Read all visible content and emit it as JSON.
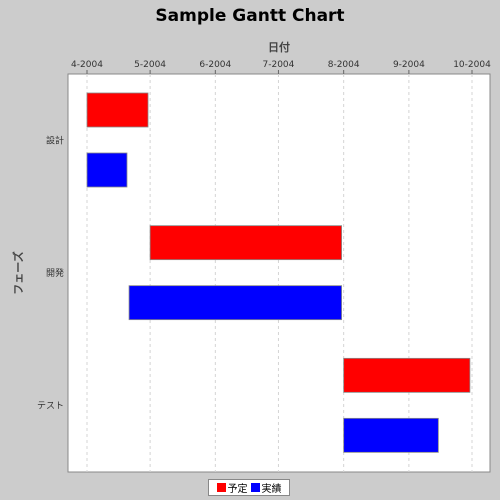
{
  "chart_data": {
    "type": "gantt",
    "title": "Sample Gantt Chart",
    "xlabel": "日付",
    "ylabel": "フェーズ",
    "x_ticks": [
      "4-2004",
      "5-2004",
      "6-2004",
      "7-2004",
      "8-2004",
      "9-2004",
      "10-2004"
    ],
    "xlim": [
      "2004-04-01",
      "2004-10-01"
    ],
    "grid": "vertical",
    "legend_position": "bottom",
    "categories": [
      "設計",
      "開発",
      "テスト"
    ],
    "series": [
      {
        "name": "予定",
        "color": "#ff0000",
        "tasks": [
          {
            "category": "設計",
            "start": "2004-04-01",
            "end": "2004-04-30"
          },
          {
            "category": "開発",
            "start": "2004-05-01",
            "end": "2004-07-31"
          },
          {
            "category": "テスト",
            "start": "2004-08-01",
            "end": "2004-09-30"
          }
        ]
      },
      {
        "name": "実績",
        "color": "#0000ff",
        "tasks": [
          {
            "category": "設計",
            "start": "2004-04-01",
            "end": "2004-04-20"
          },
          {
            "category": "開発",
            "start": "2004-04-21",
            "end": "2004-07-31"
          },
          {
            "category": "テスト",
            "start": "2004-08-01",
            "end": "2004-09-15"
          }
        ]
      }
    ]
  }
}
